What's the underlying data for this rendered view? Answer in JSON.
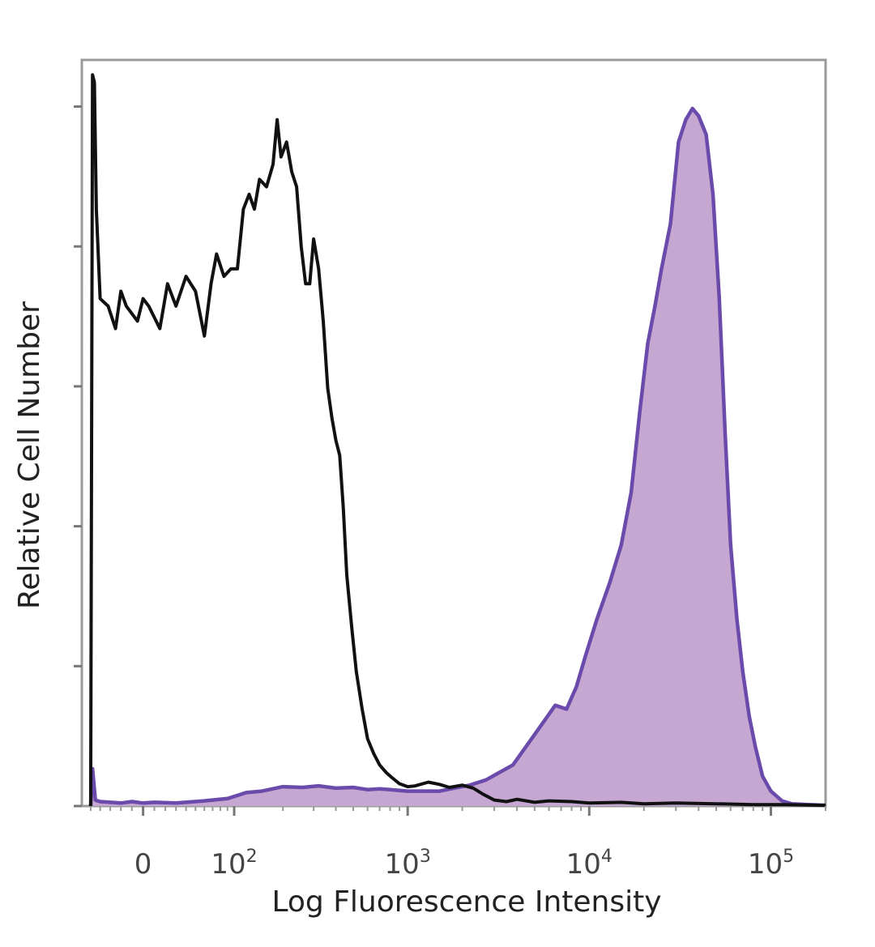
{
  "chart_data": {
    "type": "area",
    "title": "",
    "xlabel": "Log Fluorescence Intensity",
    "ylabel": "Relative Cell Number",
    "x_scale": "biexponential",
    "xlim": [
      -60,
      200000
    ],
    "ylim": [
      0,
      100
    ],
    "grid": false,
    "legend": "none",
    "x_ticks": [
      {
        "value": 0,
        "base": "0",
        "exp": ""
      },
      {
        "value": 100,
        "base": "10",
        "exp": "2"
      },
      {
        "value": 1000,
        "base": "10",
        "exp": "3"
      },
      {
        "value": 10000,
        "base": "10",
        "exp": "4"
      },
      {
        "value": 100000,
        "base": "10",
        "exp": "5"
      }
    ],
    "y_ticks": [
      0,
      18.75,
      37.5,
      56.25,
      75,
      93.75
    ],
    "series": [
      {
        "style": "line",
        "color": "#111111",
        "points": [
          [
            -50,
            0
          ],
          [
            -48,
            98
          ],
          [
            -46,
            97
          ],
          [
            -44,
            80
          ],
          [
            -40,
            68
          ],
          [
            -32,
            67
          ],
          [
            -25,
            64
          ],
          [
            -20,
            69
          ],
          [
            -15,
            67
          ],
          [
            -5,
            65
          ],
          [
            0,
            68
          ],
          [
            5,
            67
          ],
          [
            15,
            64
          ],
          [
            22,
            70
          ],
          [
            30,
            67
          ],
          [
            40,
            71
          ],
          [
            50,
            69
          ],
          [
            60,
            63
          ],
          [
            68,
            70
          ],
          [
            75,
            74
          ],
          [
            85,
            71
          ],
          [
            95,
            72
          ],
          [
            105,
            72
          ],
          [
            115,
            80
          ],
          [
            125,
            82
          ],
          [
            135,
            80
          ],
          [
            145,
            84
          ],
          [
            160,
            83
          ],
          [
            175,
            86
          ],
          [
            185,
            92
          ],
          [
            195,
            87
          ],
          [
            210,
            89
          ],
          [
            225,
            85
          ],
          [
            240,
            83
          ],
          [
            255,
            75
          ],
          [
            270,
            70
          ],
          [
            285,
            70
          ],
          [
            300,
            76
          ],
          [
            320,
            72
          ],
          [
            340,
            65
          ],
          [
            360,
            56
          ],
          [
            380,
            52
          ],
          [
            400,
            49
          ],
          [
            420,
            47
          ],
          [
            440,
            40
          ],
          [
            460,
            31
          ],
          [
            490,
            24
          ],
          [
            520,
            18
          ],
          [
            560,
            13
          ],
          [
            600,
            9
          ],
          [
            650,
            7
          ],
          [
            700,
            5.5
          ],
          [
            760,
            4.5
          ],
          [
            820,
            3.8
          ],
          [
            900,
            3
          ],
          [
            1000,
            2.6
          ],
          [
            1100,
            2.7
          ],
          [
            1300,
            3.2
          ],
          [
            1500,
            2.9
          ],
          [
            1700,
            2.5
          ],
          [
            2000,
            2.8
          ],
          [
            2300,
            2.4
          ],
          [
            2600,
            1.6
          ],
          [
            3000,
            0.8
          ],
          [
            3500,
            0.6
          ],
          [
            4000,
            0.9
          ],
          [
            5000,
            0.5
          ],
          [
            6000,
            0.7
          ],
          [
            8000,
            0.6
          ],
          [
            10000,
            0.4
          ],
          [
            15000,
            0.5
          ],
          [
            20000,
            0.3
          ],
          [
            30000,
            0.4
          ],
          [
            50000,
            0.3
          ],
          [
            80000,
            0.2
          ],
          [
            120000,
            0.2
          ],
          [
            200000,
            0.1
          ]
        ]
      },
      {
        "style": "filled",
        "color": "#6a4aab",
        "fill": "#c6a7d1",
        "points": [
          [
            -50,
            0
          ],
          [
            -48,
            5
          ],
          [
            -45,
            0.8
          ],
          [
            -40,
            0.6
          ],
          [
            -20,
            0.4
          ],
          [
            -10,
            0.6
          ],
          [
            0,
            0.4
          ],
          [
            10,
            0.5
          ],
          [
            30,
            0.4
          ],
          [
            60,
            0.7
          ],
          [
            90,
            1
          ],
          [
            120,
            1.8
          ],
          [
            150,
            2
          ],
          [
            200,
            2.6
          ],
          [
            260,
            2.5
          ],
          [
            320,
            2.7
          ],
          [
            400,
            2.4
          ],
          [
            500,
            2.5
          ],
          [
            600,
            2.2
          ],
          [
            700,
            2.3
          ],
          [
            800,
            2.2
          ],
          [
            900,
            2.1
          ],
          [
            1000,
            2
          ],
          [
            1200,
            2
          ],
          [
            1500,
            2
          ],
          [
            1800,
            2.4
          ],
          [
            2200,
            2.8
          ],
          [
            2700,
            3.5
          ],
          [
            3200,
            4.5
          ],
          [
            3800,
            5.5
          ],
          [
            4500,
            8
          ],
          [
            5500,
            11
          ],
          [
            6500,
            13.5
          ],
          [
            7500,
            13
          ],
          [
            8500,
            16
          ],
          [
            9500,
            20
          ],
          [
            11000,
            25
          ],
          [
            13000,
            30
          ],
          [
            15000,
            35
          ],
          [
            17000,
            42
          ],
          [
            19000,
            53
          ],
          [
            21000,
            62
          ],
          [
            23000,
            67
          ],
          [
            25000,
            72
          ],
          [
            28000,
            78
          ],
          [
            31000,
            89
          ],
          [
            34000,
            92
          ],
          [
            37000,
            93.5
          ],
          [
            40000,
            92.5
          ],
          [
            44000,
            90
          ],
          [
            48000,
            82
          ],
          [
            52000,
            68
          ],
          [
            56000,
            50
          ],
          [
            60000,
            35
          ],
          [
            65000,
            25
          ],
          [
            70000,
            18
          ],
          [
            76000,
            12
          ],
          [
            82000,
            8
          ],
          [
            90000,
            4
          ],
          [
            100000,
            2
          ],
          [
            115000,
            0.7
          ],
          [
            130000,
            0.3
          ],
          [
            160000,
            0.2
          ],
          [
            200000,
            0.1
          ]
        ]
      }
    ]
  }
}
